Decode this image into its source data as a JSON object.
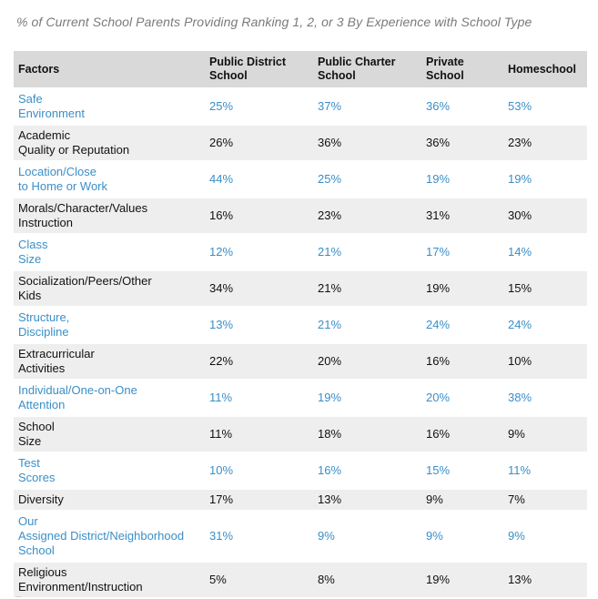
{
  "title": "% of Current School Parents Providing Ranking 1, 2, or 3 By Experience with School Type",
  "table": {
    "headers": [
      {
        "lines": [
          "Factors"
        ]
      },
      {
        "lines": [
          "Public District",
          "School"
        ]
      },
      {
        "lines": [
          "Public Charter",
          "School"
        ]
      },
      {
        "lines": [
          "Private",
          "School"
        ]
      },
      {
        "lines": [
          "Homeschool"
        ]
      }
    ],
    "rows": [
      {
        "label": [
          "Safe",
          "Environment"
        ],
        "values": [
          "25%",
          "37%",
          "36%",
          "53%"
        ]
      },
      {
        "label": [
          "Academic",
          "Quality or Reputation"
        ],
        "values": [
          "26%",
          "36%",
          "36%",
          "23%"
        ]
      },
      {
        "label": [
          "Location/Close",
          "to Home or Work"
        ],
        "values": [
          "44%",
          "25%",
          "19%",
          "19%"
        ]
      },
      {
        "label": [
          "Morals/Character/Values",
          "Instruction"
        ],
        "values": [
          "16%",
          "23%",
          "31%",
          "30%"
        ]
      },
      {
        "label": [
          "Class",
          "Size"
        ],
        "values": [
          "12%",
          "21%",
          "17%",
          "14%"
        ]
      },
      {
        "label": [
          "Socialization/Peers/Other",
          "Kids"
        ],
        "values": [
          "34%",
          "21%",
          "19%",
          "15%"
        ]
      },
      {
        "label": [
          "Structure,",
          "Discipline"
        ],
        "values": [
          "13%",
          "21%",
          "24%",
          "24%"
        ]
      },
      {
        "label": [
          "Extracurricular",
          "Activities"
        ],
        "values": [
          "22%",
          "20%",
          "16%",
          "10%"
        ]
      },
      {
        "label": [
          "Individual/One-on-One",
          "Attention"
        ],
        "values": [
          "11%",
          "19%",
          "20%",
          "38%"
        ]
      },
      {
        "label": [
          "School",
          "Size"
        ],
        "values": [
          "11%",
          "18%",
          "16%",
          "9%"
        ]
      },
      {
        "label": [
          "Test",
          "Scores"
        ],
        "values": [
          "10%",
          "16%",
          "15%",
          "11%"
        ]
      },
      {
        "label": [
          "Diversity"
        ],
        "values": [
          "17%",
          "13%",
          "9%",
          "7%"
        ]
      },
      {
        "label": [
          "Our",
          "Assigned District/Neighborhood",
          "School"
        ],
        "values": [
          "31%",
          "9%",
          "9%",
          "9%"
        ]
      },
      {
        "label": [
          "Religious",
          "Environment/Instruction"
        ],
        "values": [
          "5%",
          "8%",
          "19%",
          "13%"
        ]
      }
    ]
  },
  "colors": {
    "header_bg": "#d9d9d9",
    "shaded_row_bg": "#eeeeee",
    "highlight_text": "#3a8fc7",
    "title_text": "#7a7a7a"
  },
  "footnote": "..."
}
